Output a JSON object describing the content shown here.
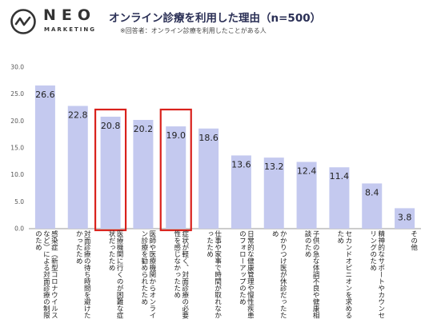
{
  "brand": {
    "name": "NEO",
    "tagline": "MARKETING",
    "logo_icon": "neo-circle-wave-icon"
  },
  "header": {
    "title": "オンライン診療を利用した理由（n=500）",
    "note": "※回答者：オンライン診療を利用したことがある人"
  },
  "colors": {
    "bar": "#c4c9ef",
    "highlight_border": "#d9221c",
    "axis": "#9a9a9a"
  },
  "chart_data": {
    "type": "bar",
    "ylim": [
      0,
      30
    ],
    "y_ticks": [
      "0.0",
      "5.0",
      "10.0",
      "15.0",
      "20.0",
      "25.0",
      "30.0"
    ],
    "categories": [
      "感染症（新型コロナウイルスなど）による対面診療の制限のため",
      "対面診療の待ち時間を避けたかったため",
      "医療機関に行くのが困難な症状だったため",
      "医師や医療機関からオンライン診療を勧められたため",
      "症状が軽く、対面診療の必要性を感じなかったため",
      "仕事や家事で時間が取れなかったため",
      "日常的な健康管理や慢性疾患のフォローアップのため",
      "かかりつけ医が休診だったため",
      "子供の急な体調不良や健康相談のため",
      "セカンドオピニオンを求めるため",
      "精神的なサポートやカウンセリングのため",
      "その他"
    ],
    "values": [
      26.6,
      22.8,
      20.8,
      20.2,
      19.0,
      18.6,
      13.6,
      13.2,
      12.4,
      11.4,
      8.4,
      3.8
    ],
    "value_labels": [
      "26.6",
      "22.8",
      "20.8",
      "20.2",
      "19.0",
      "18.6",
      "13.6",
      "13.2",
      "12.4",
      "11.4",
      "8.4",
      "3.8"
    ],
    "highlighted": [
      2,
      4
    ]
  }
}
